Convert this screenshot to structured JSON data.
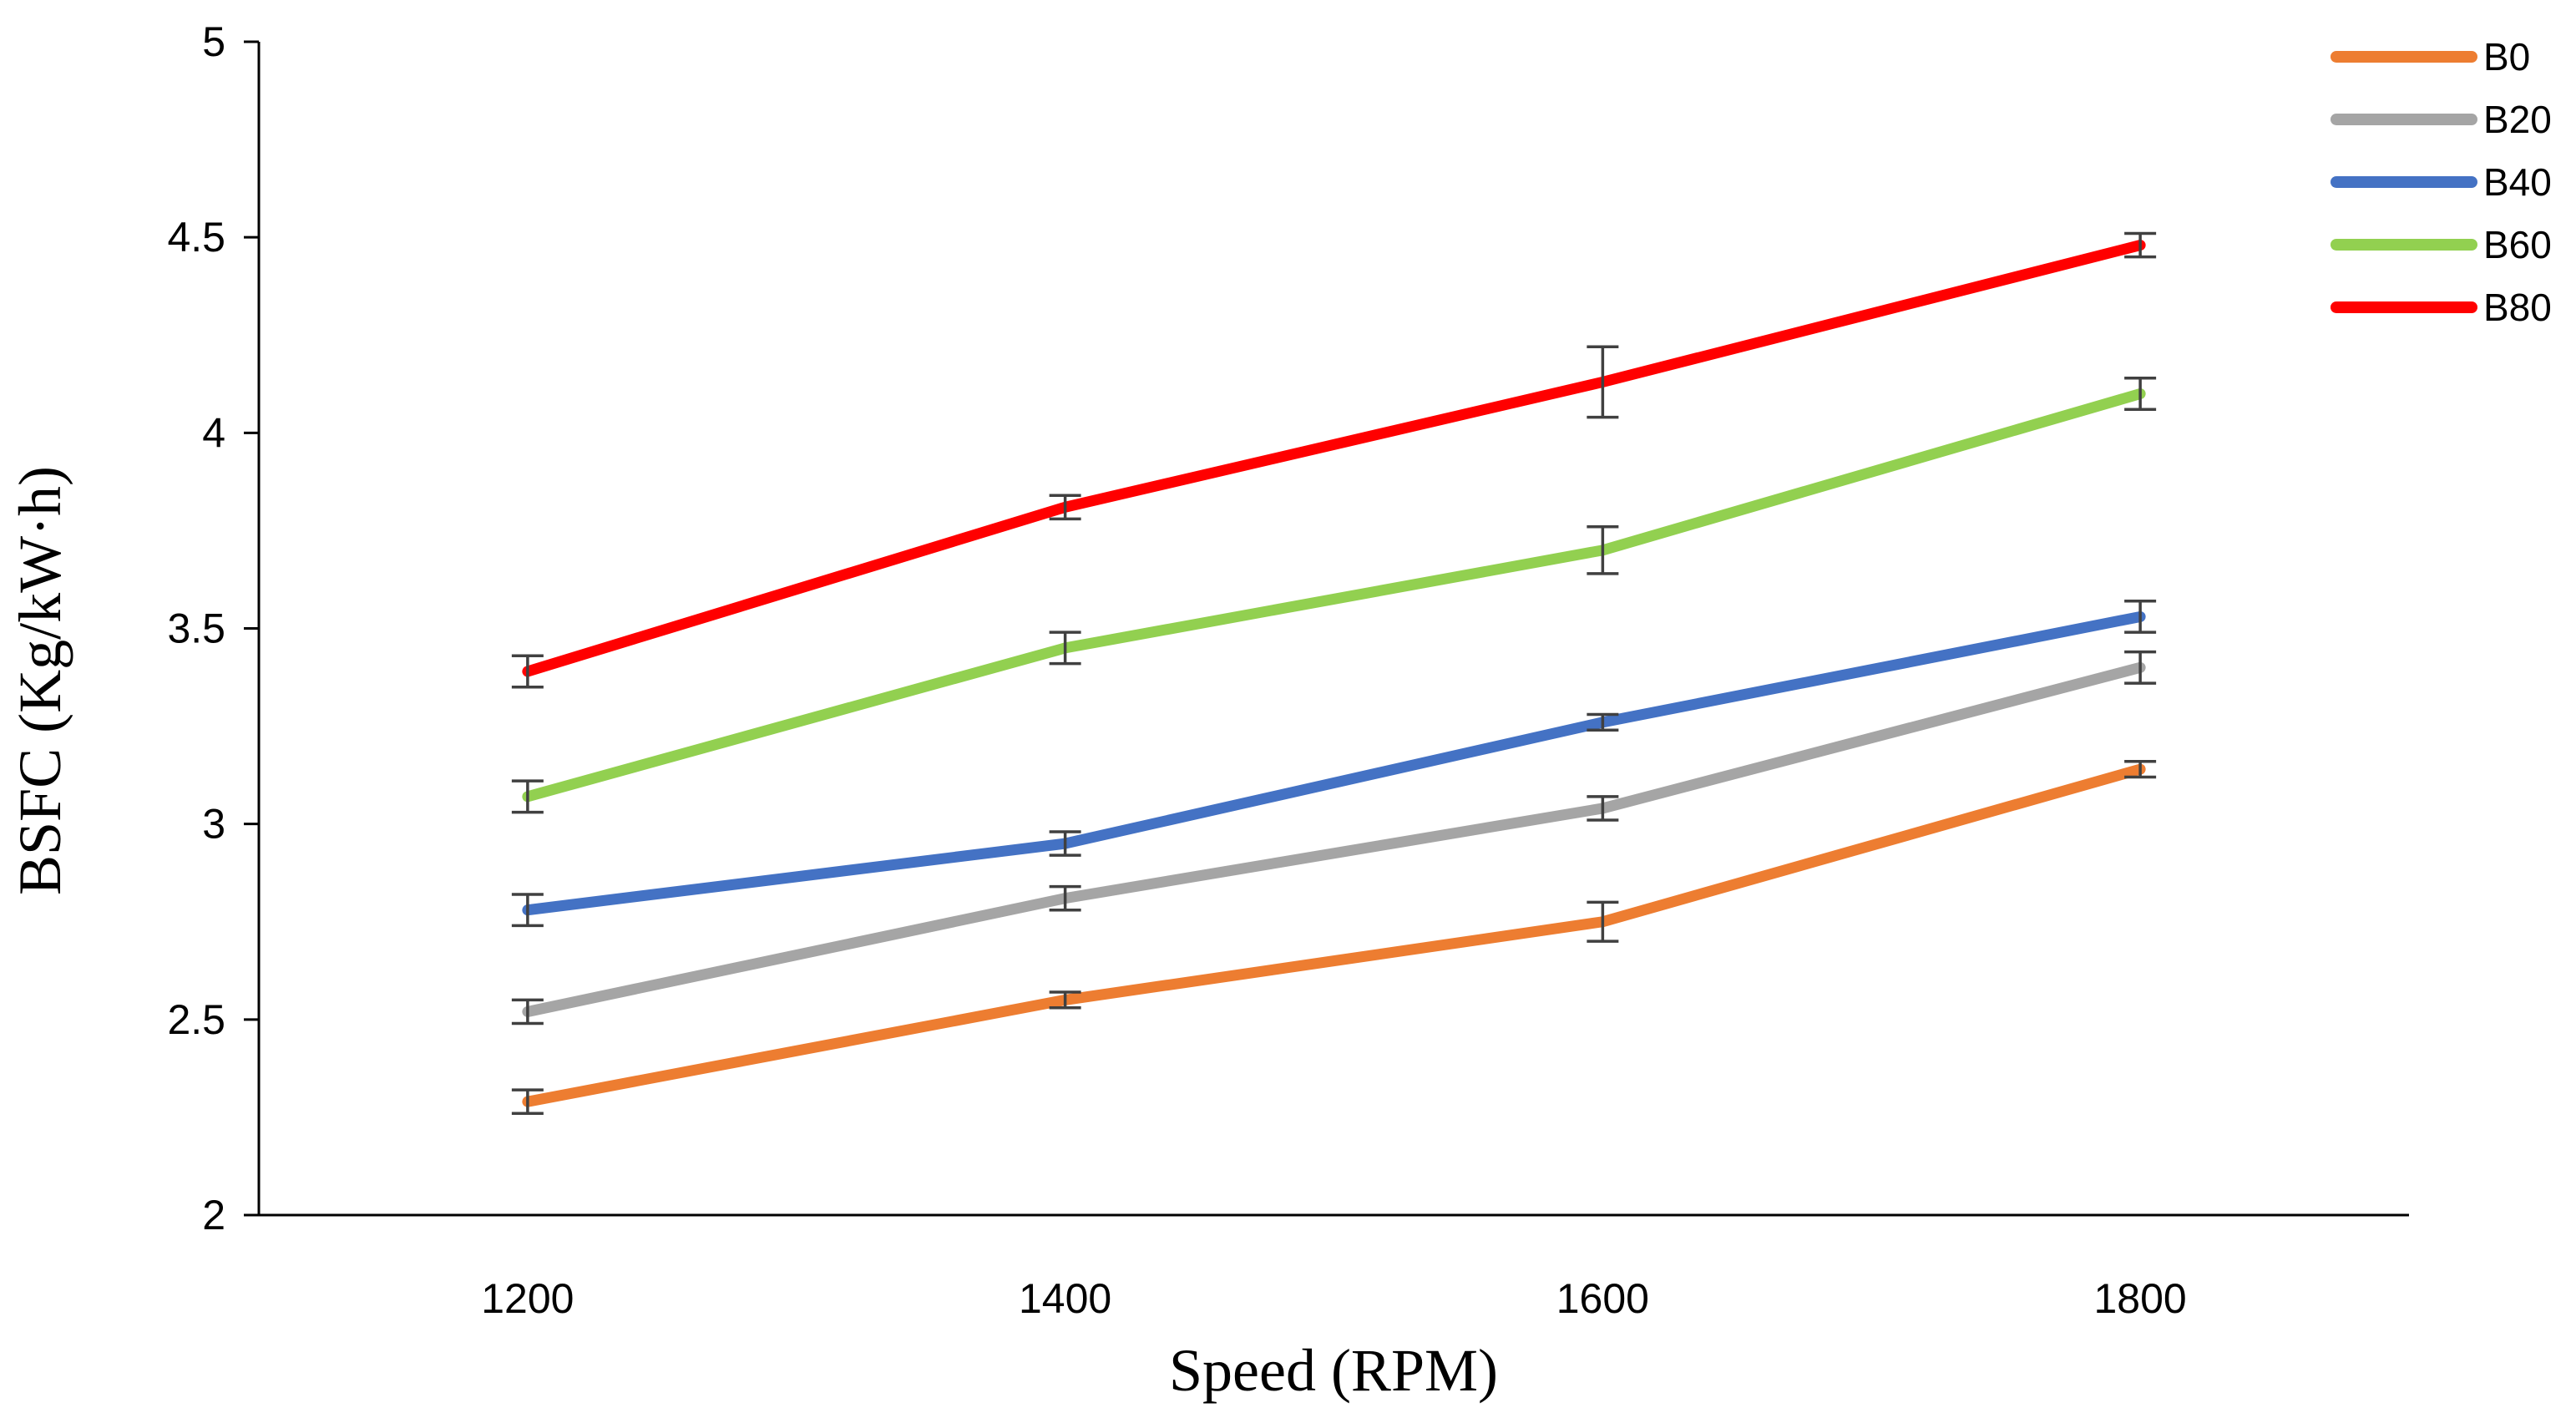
{
  "chart_data": {
    "type": "line",
    "title": "",
    "xlabel": "Speed (RPM)",
    "ylabel": "BSFC (Kg/kW·h)",
    "x": [
      1200,
      1400,
      1600,
      1800
    ],
    "x_tick_labels": [
      "1200",
      "1400",
      "1600",
      "1800"
    ],
    "xlim": [
      1100,
      1900
    ],
    "ylim": [
      2,
      5
    ],
    "y_ticks": [
      2,
      2.5,
      3,
      3.5,
      4,
      4.5,
      5
    ],
    "y_tick_labels": [
      "2",
      "2.5",
      "3",
      "3.5",
      "4",
      "4.5",
      "5"
    ],
    "grid": false,
    "legend_position": "top-right",
    "error_bar_color": "#404040",
    "series": [
      {
        "name": "B0",
        "color": "#ED7D31",
        "values": [
          2.29,
          2.55,
          2.75,
          3.14
        ],
        "errors": [
          0.03,
          0.02,
          0.05,
          0.02
        ]
      },
      {
        "name": "B20",
        "color": "#A5A5A5",
        "values": [
          2.52,
          2.81,
          3.04,
          3.4
        ],
        "errors": [
          0.03,
          0.03,
          0.03,
          0.04
        ]
      },
      {
        "name": "B40",
        "color": "#4472C4",
        "values": [
          2.78,
          2.95,
          3.26,
          3.53
        ],
        "errors": [
          0.04,
          0.03,
          0.02,
          0.04
        ]
      },
      {
        "name": "B60",
        "color": "#92D050",
        "values": [
          3.07,
          3.45,
          3.7,
          4.1
        ],
        "errors": [
          0.04,
          0.04,
          0.06,
          0.04
        ]
      },
      {
        "name": "B80",
        "color": "#FF0000",
        "values": [
          3.39,
          3.81,
          4.13,
          4.48
        ],
        "errors": [
          0.04,
          0.03,
          0.09,
          0.03
        ]
      }
    ]
  }
}
